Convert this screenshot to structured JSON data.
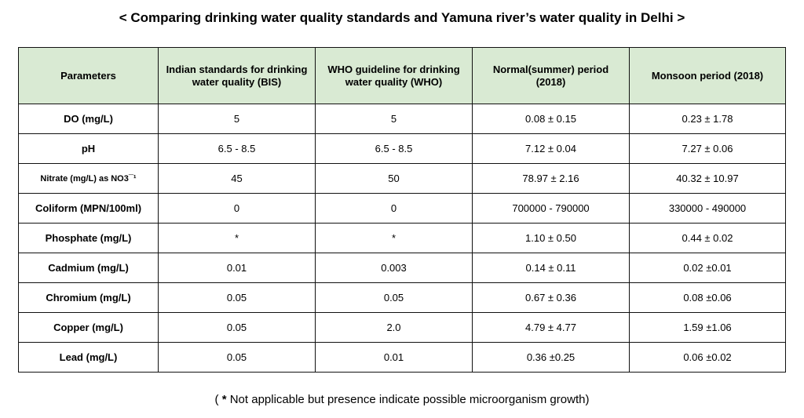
{
  "title": "< Comparing drinking water quality standards and Yamuna river’s water quality in Delhi >",
  "headers": [
    "Parameters",
    "Indian standards for drinking water quality (BIS)",
    "WHO guideline for drinking water quality (WHO)",
    "Normal(summer) period (2018)",
    "Monsoon period (2018)"
  ],
  "rows": [
    {
      "param": "DO (mg/L)",
      "bis": "5",
      "who": "5",
      "summer": "0.08 ± 0.15",
      "monsoon": "0.23 ± 1.78"
    },
    {
      "param": "pH",
      "bis": "6.5 - 8.5",
      "who": "6.5 - 8.5",
      "summer": "7.12 ± 0.04",
      "monsoon": "7.27 ± 0.06"
    },
    {
      "param": "Nitrate (mg/L) as NO3¯¹",
      "bis": "45",
      "who": "50",
      "summer": "78.97 ± 2.16",
      "monsoon": "40.32 ± 10.97"
    },
    {
      "param": "Coliform (MPN/100ml)",
      "bis": "0",
      "who": "0",
      "summer": "700000 - 790000",
      "monsoon": "330000 - 490000"
    },
    {
      "param": "Phosphate (mg/L)",
      "bis": "*",
      "who": "*",
      "summer": "1.10 ± 0.50",
      "monsoon": "0.44 ± 0.02"
    },
    {
      "param": "Cadmium (mg/L)",
      "bis": "0.01",
      "who": "0.003",
      "summer": "0.14 ± 0.11",
      "monsoon": "0.02 ±0.01"
    },
    {
      "param": "Chromium (mg/L)",
      "bis": "0.05",
      "who": "0.05",
      "summer": "0.67 ± 0.36",
      "monsoon": "0.08 ±0.06"
    },
    {
      "param": "Copper (mg/L)",
      "bis": "0.05",
      "who": "2.0",
      "summer": "4.79 ± 4.77",
      "monsoon": "1.59 ±1.06"
    },
    {
      "param": "Lead (mg/L)",
      "bis": "0.05",
      "who": "0.01",
      "summer": "0.36 ±0.25",
      "monsoon": "0.06 ±0.02"
    }
  ],
  "footnote": {
    "open": "( ",
    "star": "*",
    "text": " Not applicable but presence indicate possible microorganism growth)"
  },
  "colors": {
    "header_bg": "#d9ead3",
    "border": "#111111"
  }
}
